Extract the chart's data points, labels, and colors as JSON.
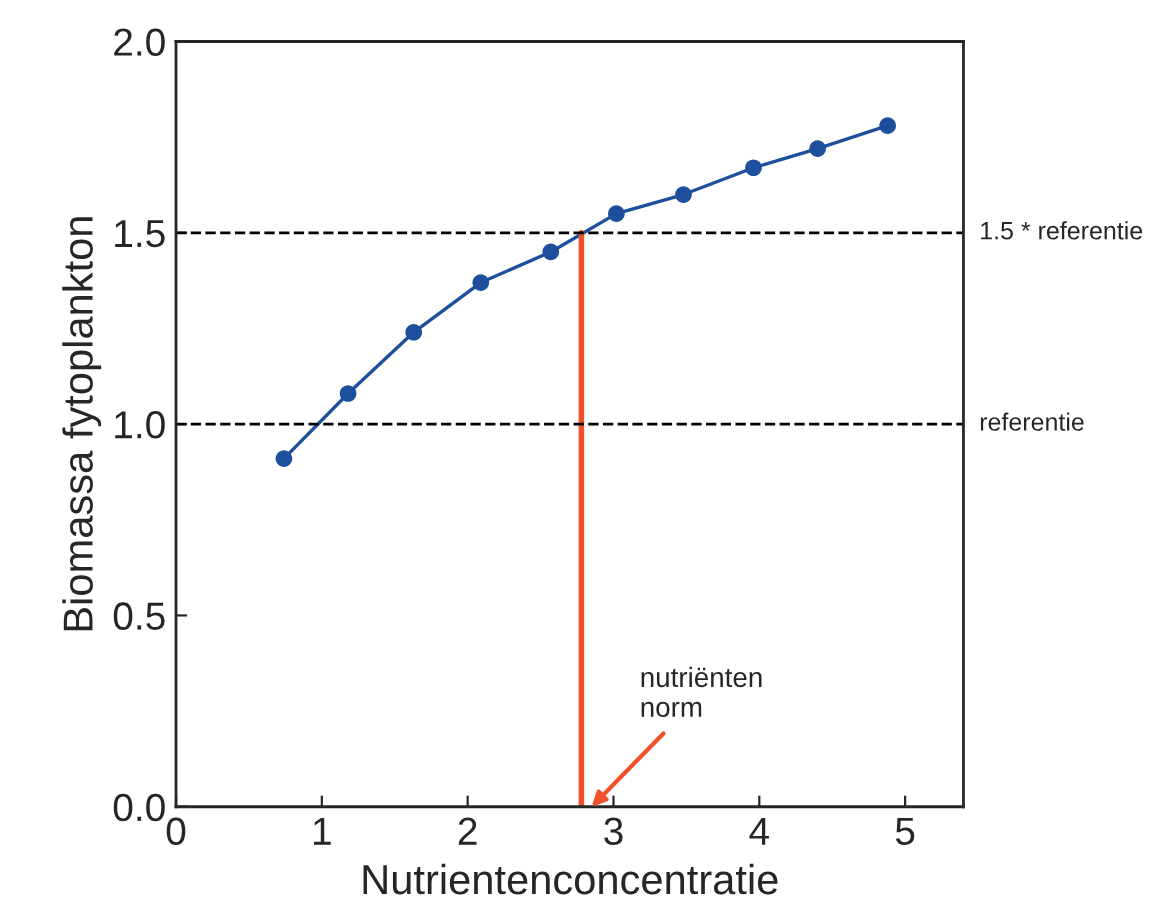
{
  "chart_data": {
    "type": "line",
    "xlabel": "Nutrientenconcentratie",
    "ylabel": "Biomassa fytoplankton",
    "xlim": [
      0,
      5.4
    ],
    "xticks": [
      0,
      1,
      2,
      3,
      4,
      5
    ],
    "ylim": [
      0,
      2.0
    ],
    "yticks": [
      {
        "value": 0,
        "label": "0.0"
      },
      {
        "value": 0.5,
        "label": "0.5"
      },
      {
        "value": 1.0,
        "label": "1.0"
      },
      {
        "value": 1.5,
        "label": "1.5"
      },
      {
        "value": 2.0,
        "label": "2.0"
      }
    ],
    "grid": false,
    "legend": false,
    "series": [
      {
        "color": "#1d4f9c",
        "marker": "circle",
        "line_style": "solid",
        "x": [
          0.74,
          1.18,
          1.63,
          2.09,
          2.57,
          3.02,
          3.48,
          3.96,
          4.4,
          4.88
        ],
        "values": [
          0.91,
          1.08,
          1.24,
          1.37,
          1.45,
          1.55,
          1.6,
          1.67,
          1.72,
          1.78
        ]
      },
      {
        "color": "#f0502a",
        "marker": "none",
        "line_style": "solid",
        "x": [
          2.78,
          2.78
        ],
        "values": [
          0,
          1.5
        ]
      }
    ],
    "ref_lines": [
      {
        "axis": "y",
        "value": 1.5,
        "label": "1.5 * referentie",
        "color": "#000000",
        "line_style": "dashed"
      },
      {
        "axis": "y",
        "value": 1.0,
        "label": "referentie",
        "color": "#000000",
        "line_style": "dashed"
      }
    ],
    "annotations": [
      "nutriënten\nnorm"
    ]
  }
}
